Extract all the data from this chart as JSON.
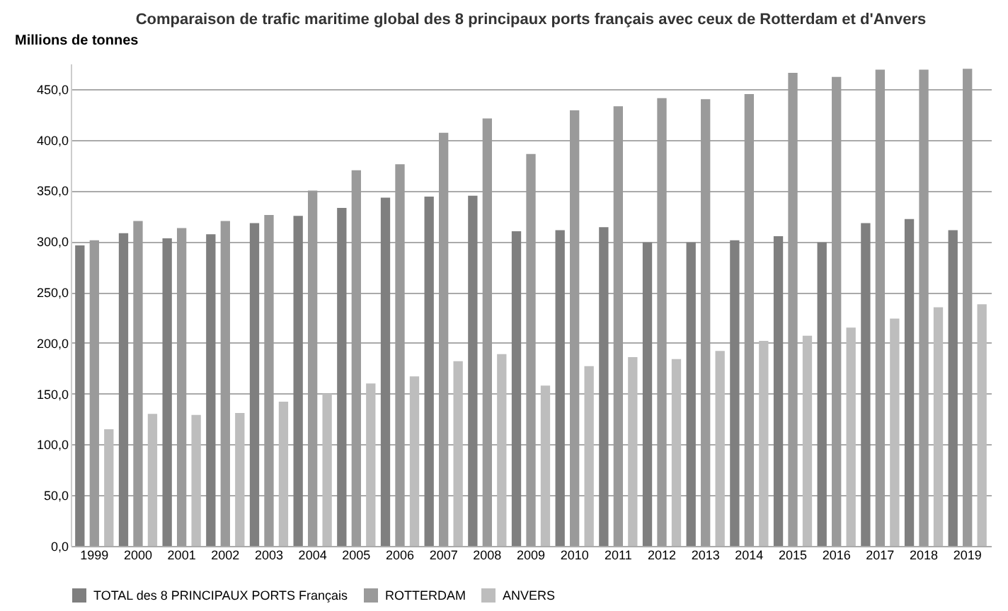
{
  "chart_data": {
    "type": "bar",
    "title": "Comparaison de trafic maritime global des 8 principaux ports français avec ceux de Rotterdam et d'Anvers",
    "ylabel": "Millions de tonnes",
    "categories": [
      "1999",
      "2000",
      "2001",
      "2002",
      "2003",
      "2004",
      "2005",
      "2006",
      "2007",
      "2008",
      "2009",
      "2010",
      "2011",
      "2012",
      "2013",
      "2014",
      "2015",
      "2016",
      "2017",
      "2018",
      "2019"
    ],
    "series": [
      {
        "name": "TOTAL des 8 PRINCIPAUX PORTS Français",
        "color": "#7f7f7f",
        "values": [
          296,
          308,
          303,
          307,
          318,
          325,
          333,
          343,
          344,
          345,
          310,
          311,
          314,
          299,
          299,
          301,
          305,
          299,
          318,
          322,
          311
        ]
      },
      {
        "name": "ROTTERDAM",
        "color": "#9a9a9a",
        "values": [
          301,
          320,
          313,
          320,
          326,
          350,
          370,
          376,
          407,
          421,
          386,
          429,
          433,
          441,
          440,
          445,
          466,
          462,
          469,
          469,
          470
        ]
      },
      {
        "name": "ANVERS",
        "color": "#bdbdbd",
        "values": [
          115,
          130,
          129,
          131,
          142,
          150,
          160,
          167,
          182,
          189,
          158,
          177,
          186,
          184,
          192,
          202,
          207,
          215,
          224,
          235,
          238
        ]
      }
    ],
    "ylim": [
      0,
      475
    ],
    "yticks": [
      {
        "value": 0,
        "label": "0,0"
      },
      {
        "value": 50,
        "label": "50,0"
      },
      {
        "value": 100,
        "label": "100,0"
      },
      {
        "value": 150,
        "label": "150,0"
      },
      {
        "value": 200,
        "label": "200,0"
      },
      {
        "value": 250,
        "label": "250,0"
      },
      {
        "value": 300,
        "label": "300,0"
      },
      {
        "value": 350,
        "label": "350,0"
      },
      {
        "value": 400,
        "label": "400,0"
      },
      {
        "value": 450,
        "label": "450,0"
      }
    ],
    "grid": "y",
    "legend": "bottom"
  }
}
